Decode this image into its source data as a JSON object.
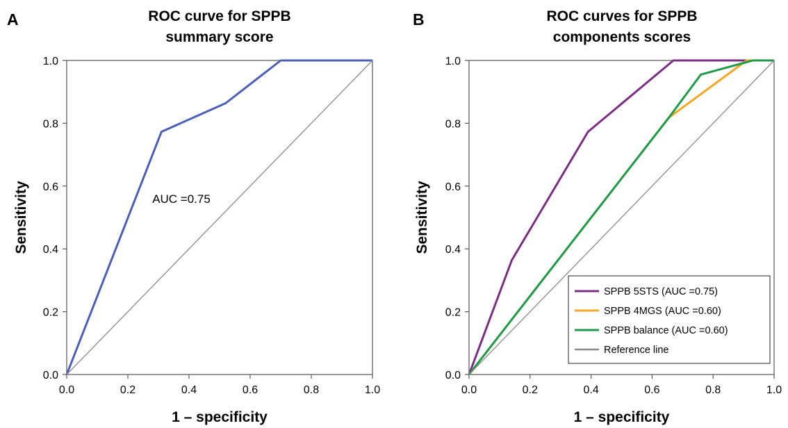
{
  "chart_data": [
    {
      "panel_label": "A",
      "type": "line",
      "title_lines": [
        "ROC curve for SPPB",
        "summary score"
      ],
      "xlabel": "1 – specificity",
      "ylabel": "Sensitivity",
      "xlim": [
        0,
        1
      ],
      "ylim": [
        0,
        1
      ],
      "ticks": [
        "0.0",
        "0.2",
        "0.4",
        "0.6",
        "0.8",
        "1.0"
      ],
      "annotation": "AUC =0.75",
      "series": [
        {
          "color": "#4a5fb5",
          "x": [
            0.0,
            0.31,
            0.52,
            0.7,
            1.0
          ],
          "y": [
            0.0,
            0.773,
            0.864,
            1.0,
            1.0
          ]
        },
        {
          "color": "#8a8a8a",
          "x": [
            0.0,
            1.0
          ],
          "y": [
            0.0,
            1.0
          ]
        }
      ]
    },
    {
      "panel_label": "B",
      "type": "line",
      "title_lines": [
        "ROC curves for SPPB",
        "components scores"
      ],
      "xlabel": "1 – specificity",
      "ylabel": "Sensitivity",
      "xlim": [
        0,
        1
      ],
      "ylim": [
        0,
        1
      ],
      "ticks": [
        "0.0",
        "0.2",
        "0.4",
        "0.6",
        "0.8",
        "1.0"
      ],
      "legend_position": "bottom-right",
      "series": [
        {
          "name": "SPPB 5STS (AUC =0.75)",
          "color": "#7b2c84",
          "x": [
            0.0,
            0.14,
            0.39,
            0.67,
            1.0
          ],
          "y": [
            0.0,
            0.364,
            0.773,
            1.0,
            1.0
          ]
        },
        {
          "name": "SPPB 4MGS (AUC =0.60)",
          "color": "#f5a623",
          "x": [
            0.0,
            0.655,
            0.91,
            1.0
          ],
          "y": [
            0.0,
            0.818,
            1.0,
            1.0
          ]
        },
        {
          "name": "SPPB balance (AUC =0.60)",
          "color": "#1f9a4a",
          "x": [
            0.0,
            0.655,
            0.76,
            0.93,
            1.0
          ],
          "y": [
            0.0,
            0.818,
            0.955,
            1.0,
            1.0
          ]
        },
        {
          "name": "Reference line",
          "color": "#8a8a8a",
          "x": [
            0.0,
            1.0
          ],
          "y": [
            0.0,
            1.0
          ]
        }
      ]
    }
  ]
}
